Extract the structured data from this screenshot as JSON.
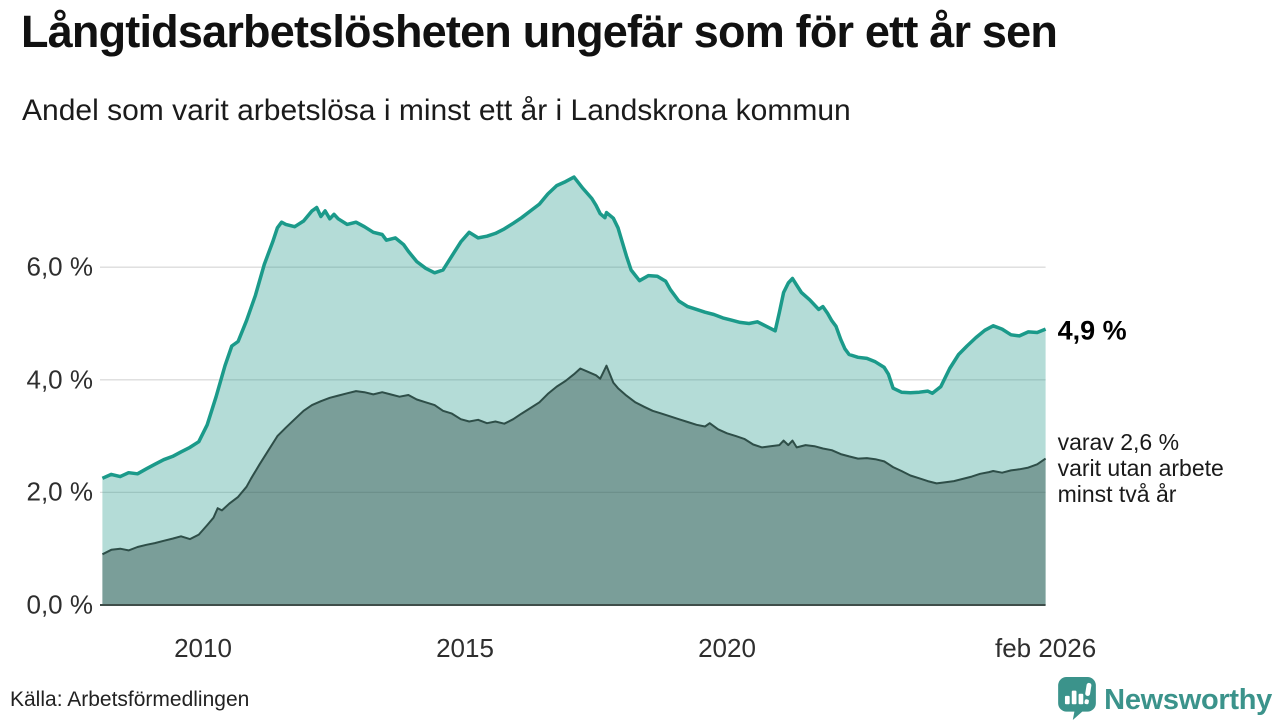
{
  "header": {
    "title": "Långtidsarbetslösheten ungefär som för ett år sen",
    "subtitle": "Andel som varit arbetslösa i minst ett år i Landskrona kommun"
  },
  "chart_data": {
    "type": "area",
    "title": "Långtidsarbetslösheten ungefär som för ett år sen",
    "subtitle": "Andel som varit arbetslösa i minst ett år i Landskrona kommun",
    "unit": "%",
    "grid": true,
    "legend_position": "none",
    "x_axis": {
      "range": [
        2008.08,
        2026.08
      ],
      "ticks": [
        {
          "value": 2010,
          "label": "2010"
        },
        {
          "value": 2015,
          "label": "2015"
        },
        {
          "value": 2020,
          "label": "2020"
        },
        {
          "value": 2026.08,
          "label": "feb 2026"
        }
      ]
    },
    "y_axis": {
      "range": [
        0,
        7.9
      ],
      "ticks": [
        {
          "value": 0,
          "label": "0,0 %"
        },
        {
          "value": 2,
          "label": "2,0 %"
        },
        {
          "value": 4,
          "label": "4,0 %"
        },
        {
          "value": 6,
          "label": "6,0 %"
        }
      ]
    },
    "series": [
      {
        "name": "arbetslösa minst ett år",
        "line_color": "#1b9a8a",
        "fill_color": "rgba(34,152,137,0.34)",
        "line_width": 3.5,
        "end_value_label": "4,9 %",
        "points": [
          [
            2008.08,
            2.25
          ],
          [
            2008.25,
            2.32
          ],
          [
            2008.42,
            2.28
          ],
          [
            2008.58,
            2.35
          ],
          [
            2008.75,
            2.33
          ],
          [
            2008.92,
            2.42
          ],
          [
            2009.08,
            2.5
          ],
          [
            2009.25,
            2.58
          ],
          [
            2009.42,
            2.64
          ],
          [
            2009.58,
            2.72
          ],
          [
            2009.75,
            2.8
          ],
          [
            2009.92,
            2.9
          ],
          [
            2010.08,
            3.2
          ],
          [
            2010.25,
            3.7
          ],
          [
            2010.42,
            4.25
          ],
          [
            2010.55,
            4.6
          ],
          [
            2010.67,
            4.68
          ],
          [
            2010.83,
            5.05
          ],
          [
            2011.0,
            5.5
          ],
          [
            2011.17,
            6.05
          ],
          [
            2011.33,
            6.45
          ],
          [
            2011.42,
            6.7
          ],
          [
            2011.5,
            6.8
          ],
          [
            2011.58,
            6.76
          ],
          [
            2011.75,
            6.72
          ],
          [
            2011.92,
            6.82
          ],
          [
            2012.08,
            7.0
          ],
          [
            2012.17,
            7.06
          ],
          [
            2012.25,
            6.9
          ],
          [
            2012.33,
            7.0
          ],
          [
            2012.42,
            6.86
          ],
          [
            2012.5,
            6.94
          ],
          [
            2012.58,
            6.86
          ],
          [
            2012.75,
            6.76
          ],
          [
            2012.92,
            6.8
          ],
          [
            2013.08,
            6.72
          ],
          [
            2013.25,
            6.62
          ],
          [
            2013.42,
            6.58
          ],
          [
            2013.5,
            6.48
          ],
          [
            2013.67,
            6.52
          ],
          [
            2013.83,
            6.4
          ],
          [
            2013.92,
            6.28
          ],
          [
            2014.08,
            6.1
          ],
          [
            2014.25,
            5.98
          ],
          [
            2014.42,
            5.9
          ],
          [
            2014.58,
            5.95
          ],
          [
            2014.75,
            6.2
          ],
          [
            2014.92,
            6.45
          ],
          [
            2015.08,
            6.62
          ],
          [
            2015.25,
            6.52
          ],
          [
            2015.42,
            6.55
          ],
          [
            2015.58,
            6.6
          ],
          [
            2015.75,
            6.68
          ],
          [
            2015.92,
            6.78
          ],
          [
            2016.08,
            6.88
          ],
          [
            2016.25,
            7.0
          ],
          [
            2016.42,
            7.12
          ],
          [
            2016.58,
            7.3
          ],
          [
            2016.75,
            7.45
          ],
          [
            2016.92,
            7.52
          ],
          [
            2017.08,
            7.6
          ],
          [
            2017.25,
            7.4
          ],
          [
            2017.42,
            7.22
          ],
          [
            2017.5,
            7.1
          ],
          [
            2017.58,
            6.95
          ],
          [
            2017.67,
            6.88
          ],
          [
            2017.7,
            6.97
          ],
          [
            2017.83,
            6.87
          ],
          [
            2017.92,
            6.7
          ],
          [
            2018.0,
            6.45
          ],
          [
            2018.08,
            6.2
          ],
          [
            2018.17,
            5.95
          ],
          [
            2018.33,
            5.76
          ],
          [
            2018.5,
            5.85
          ],
          [
            2018.67,
            5.84
          ],
          [
            2018.83,
            5.75
          ],
          [
            2018.92,
            5.6
          ],
          [
            2019.08,
            5.4
          ],
          [
            2019.25,
            5.3
          ],
          [
            2019.42,
            5.25
          ],
          [
            2019.58,
            5.2
          ],
          [
            2019.75,
            5.16
          ],
          [
            2019.92,
            5.1
          ],
          [
            2020.08,
            5.06
          ],
          [
            2020.25,
            5.02
          ],
          [
            2020.42,
            5.0
          ],
          [
            2020.58,
            5.03
          ],
          [
            2020.75,
            4.95
          ],
          [
            2020.92,
            4.87
          ],
          [
            2021.0,
            5.2
          ],
          [
            2021.08,
            5.55
          ],
          [
            2021.17,
            5.72
          ],
          [
            2021.25,
            5.8
          ],
          [
            2021.33,
            5.68
          ],
          [
            2021.42,
            5.55
          ],
          [
            2021.58,
            5.42
          ],
          [
            2021.75,
            5.25
          ],
          [
            2021.83,
            5.3
          ],
          [
            2021.92,
            5.18
          ],
          [
            2022.0,
            5.05
          ],
          [
            2022.08,
            4.95
          ],
          [
            2022.17,
            4.72
          ],
          [
            2022.25,
            4.55
          ],
          [
            2022.33,
            4.45
          ],
          [
            2022.5,
            4.4
          ],
          [
            2022.67,
            4.38
          ],
          [
            2022.83,
            4.32
          ],
          [
            2023.0,
            4.22
          ],
          [
            2023.08,
            4.1
          ],
          [
            2023.17,
            3.85
          ],
          [
            2023.33,
            3.78
          ],
          [
            2023.5,
            3.77
          ],
          [
            2023.67,
            3.78
          ],
          [
            2023.83,
            3.8
          ],
          [
            2023.92,
            3.76
          ],
          [
            2024.08,
            3.88
          ],
          [
            2024.25,
            4.2
          ],
          [
            2024.42,
            4.45
          ],
          [
            2024.58,
            4.6
          ],
          [
            2024.75,
            4.75
          ],
          [
            2024.92,
            4.88
          ],
          [
            2025.08,
            4.96
          ],
          [
            2025.25,
            4.9
          ],
          [
            2025.42,
            4.8
          ],
          [
            2025.58,
            4.78
          ],
          [
            2025.75,
            4.85
          ],
          [
            2025.92,
            4.84
          ],
          [
            2026.08,
            4.9
          ]
        ]
      },
      {
        "name": "varav arbetslösa minst två år",
        "line_color": "#2e4e48",
        "fill_color": "rgba(42,72,66,0.42)",
        "line_width": 2,
        "end_value_label": "varav 2,6 % varit utan arbete minst två år",
        "points": [
          [
            2008.08,
            0.9
          ],
          [
            2008.25,
            0.98
          ],
          [
            2008.42,
            1.0
          ],
          [
            2008.58,
            0.97
          ],
          [
            2008.75,
            1.03
          ],
          [
            2008.92,
            1.07
          ],
          [
            2009.08,
            1.1
          ],
          [
            2009.25,
            1.14
          ],
          [
            2009.42,
            1.18
          ],
          [
            2009.58,
            1.22
          ],
          [
            2009.75,
            1.17
          ],
          [
            2009.92,
            1.25
          ],
          [
            2010.08,
            1.42
          ],
          [
            2010.2,
            1.55
          ],
          [
            2010.28,
            1.72
          ],
          [
            2010.36,
            1.68
          ],
          [
            2010.5,
            1.8
          ],
          [
            2010.67,
            1.92
          ],
          [
            2010.83,
            2.1
          ],
          [
            2010.92,
            2.25
          ],
          [
            2011.08,
            2.5
          ],
          [
            2011.25,
            2.75
          ],
          [
            2011.42,
            3.0
          ],
          [
            2011.58,
            3.15
          ],
          [
            2011.75,
            3.3
          ],
          [
            2011.92,
            3.45
          ],
          [
            2012.08,
            3.55
          ],
          [
            2012.25,
            3.62
          ],
          [
            2012.42,
            3.68
          ],
          [
            2012.58,
            3.72
          ],
          [
            2012.75,
            3.76
          ],
          [
            2012.92,
            3.8
          ],
          [
            2013.08,
            3.78
          ],
          [
            2013.25,
            3.74
          ],
          [
            2013.42,
            3.78
          ],
          [
            2013.58,
            3.74
          ],
          [
            2013.75,
            3.7
          ],
          [
            2013.92,
            3.73
          ],
          [
            2014.08,
            3.65
          ],
          [
            2014.25,
            3.6
          ],
          [
            2014.42,
            3.55
          ],
          [
            2014.58,
            3.45
          ],
          [
            2014.75,
            3.4
          ],
          [
            2014.92,
            3.3
          ],
          [
            2015.08,
            3.26
          ],
          [
            2015.25,
            3.29
          ],
          [
            2015.42,
            3.23
          ],
          [
            2015.58,
            3.26
          ],
          [
            2015.75,
            3.22
          ],
          [
            2015.92,
            3.3
          ],
          [
            2016.08,
            3.4
          ],
          [
            2016.25,
            3.5
          ],
          [
            2016.42,
            3.6
          ],
          [
            2016.58,
            3.75
          ],
          [
            2016.75,
            3.88
          ],
          [
            2016.92,
            3.98
          ],
          [
            2017.08,
            4.1
          ],
          [
            2017.2,
            4.2
          ],
          [
            2017.33,
            4.15
          ],
          [
            2017.5,
            4.08
          ],
          [
            2017.58,
            4.02
          ],
          [
            2017.7,
            4.25
          ],
          [
            2017.83,
            3.95
          ],
          [
            2017.92,
            3.85
          ],
          [
            2018.08,
            3.72
          ],
          [
            2018.25,
            3.6
          ],
          [
            2018.42,
            3.52
          ],
          [
            2018.58,
            3.45
          ],
          [
            2018.75,
            3.4
          ],
          [
            2018.92,
            3.35
          ],
          [
            2019.08,
            3.3
          ],
          [
            2019.25,
            3.25
          ],
          [
            2019.42,
            3.2
          ],
          [
            2019.58,
            3.17
          ],
          [
            2019.67,
            3.23
          ],
          [
            2019.83,
            3.12
          ],
          [
            2020.0,
            3.05
          ],
          [
            2020.17,
            3.0
          ],
          [
            2020.33,
            2.95
          ],
          [
            2020.5,
            2.85
          ],
          [
            2020.67,
            2.8
          ],
          [
            2020.83,
            2.82
          ],
          [
            2021.0,
            2.84
          ],
          [
            2021.08,
            2.92
          ],
          [
            2021.17,
            2.84
          ],
          [
            2021.25,
            2.92
          ],
          [
            2021.33,
            2.8
          ],
          [
            2021.5,
            2.84
          ],
          [
            2021.67,
            2.82
          ],
          [
            2021.83,
            2.78
          ],
          [
            2022.0,
            2.75
          ],
          [
            2022.17,
            2.68
          ],
          [
            2022.33,
            2.64
          ],
          [
            2022.5,
            2.6
          ],
          [
            2022.67,
            2.61
          ],
          [
            2022.83,
            2.59
          ],
          [
            2023.0,
            2.55
          ],
          [
            2023.17,
            2.45
          ],
          [
            2023.33,
            2.38
          ],
          [
            2023.5,
            2.3
          ],
          [
            2023.67,
            2.25
          ],
          [
            2023.83,
            2.2
          ],
          [
            2024.0,
            2.16
          ],
          [
            2024.17,
            2.18
          ],
          [
            2024.33,
            2.2
          ],
          [
            2024.5,
            2.24
          ],
          [
            2024.67,
            2.28
          ],
          [
            2024.83,
            2.33
          ],
          [
            2025.0,
            2.36
          ],
          [
            2025.08,
            2.38
          ],
          [
            2025.25,
            2.35
          ],
          [
            2025.42,
            2.39
          ],
          [
            2025.58,
            2.41
          ],
          [
            2025.75,
            2.44
          ],
          [
            2025.92,
            2.5
          ],
          [
            2026.08,
            2.6
          ]
        ]
      }
    ]
  },
  "annotations": {
    "latest_value": "4,9 %",
    "two_year_lines": [
      "varav 2,6 %",
      "varit utan arbete",
      "minst två år"
    ]
  },
  "footer": {
    "source": "Källa: Arbetsförmedlingen",
    "logo_text": "Newsworthy"
  },
  "colors": {
    "accent_teal": "#1b9a8a",
    "dark_line": "#2e4e48",
    "gridline": "#dcdcdc",
    "baseline": "#3f4e4a",
    "logo_teal": "#3b938b"
  }
}
